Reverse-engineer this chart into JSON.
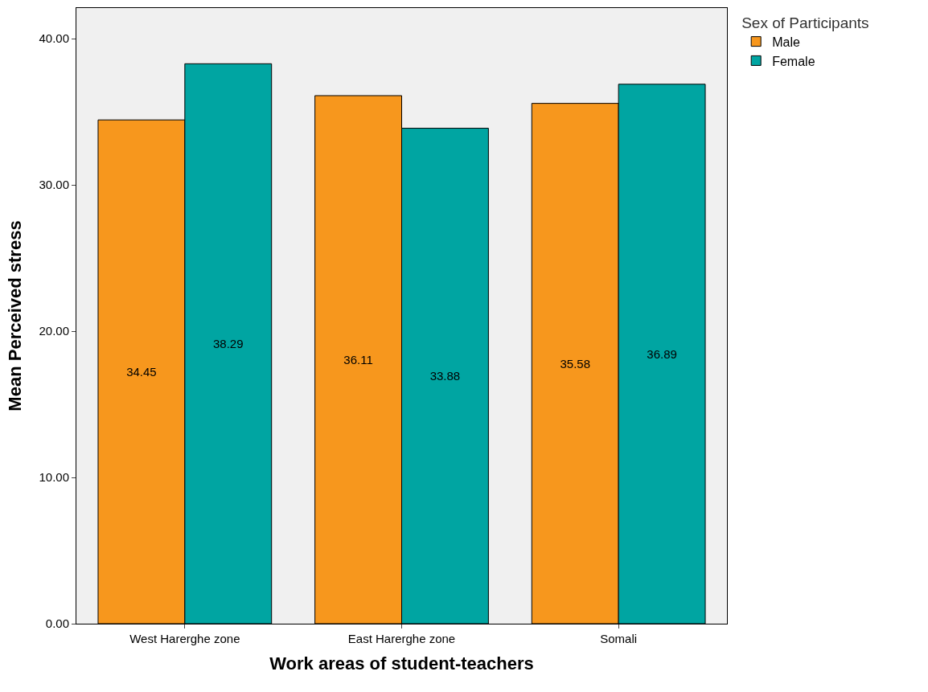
{
  "chart_data": {
    "type": "bar",
    "xlabel": "Work areas of student-teachers",
    "ylabel": "Mean Perceived stress",
    "legend_title": "Sex of Participants",
    "categories": [
      "West Harerghe zone",
      "East Harerghe zone",
      "Somali"
    ],
    "series": [
      {
        "name": "Male",
        "color": "#f7971d",
        "values": [
          34.45,
          36.11,
          35.58
        ]
      },
      {
        "name": "Female",
        "color": "#00a5a2",
        "values": [
          38.29,
          33.88,
          36.89
        ]
      }
    ],
    "ylim": [
      0,
      42.1
    ],
    "yticks": [
      {
        "value": 0,
        "label": "0.00"
      },
      {
        "value": 10,
        "label": "10.00"
      },
      {
        "value": 20,
        "label": "20.00"
      },
      {
        "value": 30,
        "label": "30.00"
      },
      {
        "value": 40,
        "label": "40.00"
      }
    ],
    "data_labels": true,
    "grid": false,
    "legend": "top right"
  }
}
